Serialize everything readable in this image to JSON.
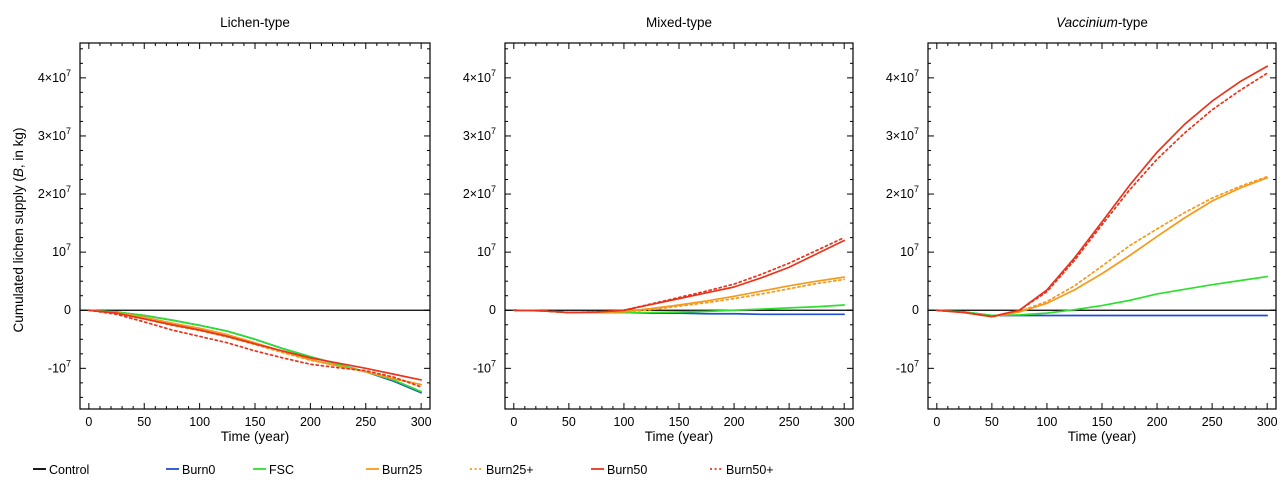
{
  "figure": {
    "ylabel_prefix": "Cumulated lichen supply (",
    "ylabel_italic": "B",
    "ylabel_suffix": ", in kg)"
  },
  "legend": [
    {
      "name": "Control",
      "color": "#000000",
      "dash": "solid"
    },
    {
      "name": "Burn0",
      "color": "#1f4fd6",
      "dash": "solid"
    },
    {
      "name": "FSC",
      "color": "#2ee02e",
      "dash": "solid"
    },
    {
      "name": "Burn25",
      "color": "#f59a1c",
      "dash": "solid"
    },
    {
      "name": "Burn25+",
      "color": "#f59a1c",
      "dash": "dotted"
    },
    {
      "name": "Burn50",
      "color": "#e8341c",
      "dash": "solid"
    },
    {
      "name": "Burn50+",
      "color": "#e8341c",
      "dash": "dotted"
    }
  ],
  "chart_data": [
    {
      "type": "line",
      "title": "Lichen-type",
      "title_italic": "",
      "title_rest": "",
      "xlabel": "Time (year)",
      "ylabel": "Cumulated lichen supply (B, in kg)",
      "xlim": [
        -8,
        308
      ],
      "ylim": [
        -17000000,
        46000000
      ],
      "xticks": [
        0,
        50,
        100,
        150,
        200,
        250,
        300
      ],
      "yticks": [
        {
          "value": -10000000,
          "base": "-10",
          "exp": "7"
        },
        {
          "value": 0,
          "base": "0",
          "exp": ""
        },
        {
          "value": 10000000,
          "base": "10",
          "exp": "7"
        },
        {
          "value": 20000000,
          "base": "2×10",
          "exp": "7"
        },
        {
          "value": 30000000,
          "base": "3×10",
          "exp": "7"
        },
        {
          "value": 40000000,
          "base": "4×10",
          "exp": "7"
        }
      ],
      "x": [
        0,
        25,
        50,
        75,
        100,
        125,
        150,
        175,
        200,
        225,
        250,
        275,
        300
      ],
      "series": [
        {
          "name": "Control",
          "values": [
            0,
            0,
            0,
            0,
            0,
            0,
            0,
            0,
            0,
            0,
            0,
            0,
            0
          ]
        },
        {
          "name": "Burn0",
          "values": [
            0,
            -300000,
            -900000,
            -1700000,
            -2600000,
            -3600000,
            -5000000,
            -6600000,
            -8000000,
            -9300000,
            -10600000,
            -12200000,
            -14200000
          ]
        },
        {
          "name": "FSC",
          "values": [
            0,
            -300000,
            -900000,
            -1700000,
            -2600000,
            -3600000,
            -5000000,
            -6600000,
            -8000000,
            -9300000,
            -10600000,
            -12000000,
            -14000000
          ]
        },
        {
          "name": "Burn25",
          "values": [
            0,
            -400000,
            -1200000,
            -2200000,
            -3100000,
            -4200000,
            -5600000,
            -7100000,
            -8500000,
            -9600000,
            -10600000,
            -11800000,
            -12800000
          ]
        },
        {
          "name": "Burn25+",
          "values": [
            0,
            -500000,
            -1500000,
            -2600000,
            -3500000,
            -4600000,
            -5900000,
            -7300000,
            -8600000,
            -9600000,
            -10500000,
            -11700000,
            -12800000
          ]
        },
        {
          "name": "Burn50",
          "values": [
            0,
            -500000,
            -1500000,
            -2500000,
            -3400000,
            -4500000,
            -5800000,
            -7000000,
            -8200000,
            -9100000,
            -10000000,
            -11000000,
            -12000000
          ]
        },
        {
          "name": "Burn50+",
          "values": [
            0,
            -700000,
            -2000000,
            -3400000,
            -4500000,
            -5600000,
            -7000000,
            -8200000,
            -9300000,
            -9900000,
            -10400000,
            -11500000,
            -13200000
          ]
        }
      ]
    },
    {
      "type": "line",
      "title": "Mixed-type",
      "title_italic": "",
      "title_rest": "",
      "xlabel": "Time (year)",
      "ylabel": "",
      "xlim": [
        -8,
        308
      ],
      "ylim": [
        -17000000,
        46000000
      ],
      "xticks": [
        0,
        50,
        100,
        150,
        200,
        250,
        300
      ],
      "yticks": [
        {
          "value": -10000000,
          "base": "-10",
          "exp": "7"
        },
        {
          "value": 0,
          "base": "0",
          "exp": ""
        },
        {
          "value": 10000000,
          "base": "10",
          "exp": "7"
        },
        {
          "value": 20000000,
          "base": "2×10",
          "exp": "7"
        },
        {
          "value": 30000000,
          "base": "3×10",
          "exp": "7"
        },
        {
          "value": 40000000,
          "base": "4×10",
          "exp": "7"
        }
      ],
      "x": [
        0,
        25,
        50,
        75,
        100,
        125,
        150,
        175,
        200,
        225,
        250,
        275,
        300
      ],
      "series": [
        {
          "name": "Control",
          "values": [
            0,
            0,
            0,
            0,
            0,
            0,
            0,
            0,
            0,
            0,
            0,
            0,
            0
          ]
        },
        {
          "name": "Burn0",
          "values": [
            0,
            -100000,
            -400000,
            -400000,
            -400000,
            -500000,
            -500000,
            -600000,
            -600000,
            -700000,
            -700000,
            -700000,
            -700000
          ]
        },
        {
          "name": "FSC",
          "values": [
            0,
            -100000,
            -400000,
            -400000,
            -400000,
            -400000,
            -300000,
            -200000,
            0,
            200000,
            400000,
            600000,
            900000
          ]
        },
        {
          "name": "Burn25",
          "values": [
            0,
            -100000,
            -400000,
            -400000,
            -200000,
            300000,
            900000,
            1600000,
            2400000,
            3300000,
            4200000,
            5000000,
            5700000
          ]
        },
        {
          "name": "Burn25+",
          "values": [
            0,
            -100000,
            -400000,
            -400000,
            -300000,
            100000,
            700000,
            1300000,
            2000000,
            2800000,
            3700000,
            4600000,
            5300000
          ]
        },
        {
          "name": "Burn50",
          "values": [
            0,
            -100000,
            -400000,
            -300000,
            0,
            1000000,
            2000000,
            3000000,
            4000000,
            5600000,
            7400000,
            9700000,
            12000000
          ]
        },
        {
          "name": "Burn50+",
          "values": [
            0,
            -100000,
            -400000,
            -300000,
            0,
            1100000,
            2200000,
            3300000,
            4500000,
            6200000,
            8100000,
            10300000,
            12500000
          ]
        }
      ]
    },
    {
      "type": "line",
      "title": "Vaccinium-type",
      "title_italic": "Vaccinium",
      "title_rest": "-type",
      "xlabel": "Time (year)",
      "ylabel": "",
      "xlim": [
        -8,
        308
      ],
      "ylim": [
        -17000000,
        46000000
      ],
      "xticks": [
        0,
        50,
        100,
        150,
        200,
        250,
        300
      ],
      "yticks": [
        {
          "value": -10000000,
          "base": "-10",
          "exp": "7"
        },
        {
          "value": 0,
          "base": "0",
          "exp": ""
        },
        {
          "value": 10000000,
          "base": "10",
          "exp": "7"
        },
        {
          "value": 20000000,
          "base": "2×10",
          "exp": "7"
        },
        {
          "value": 30000000,
          "base": "3×10",
          "exp": "7"
        },
        {
          "value": 40000000,
          "base": "4×10",
          "exp": "7"
        }
      ],
      "x": [
        0,
        25,
        50,
        75,
        100,
        125,
        150,
        175,
        200,
        225,
        250,
        275,
        300
      ],
      "series": [
        {
          "name": "Control",
          "values": [
            0,
            0,
            0,
            0,
            0,
            0,
            0,
            0,
            0,
            0,
            0,
            0,
            0
          ]
        },
        {
          "name": "Burn0",
          "values": [
            0,
            -300000,
            -900000,
            -900000,
            -900000,
            -900000,
            -900000,
            -900000,
            -900000,
            -900000,
            -900000,
            -900000,
            -900000
          ]
        },
        {
          "name": "FSC",
          "values": [
            0,
            -300000,
            -900000,
            -800000,
            -500000,
            100000,
            800000,
            1700000,
            2800000,
            3600000,
            4400000,
            5100000,
            5800000
          ]
        },
        {
          "name": "Burn25",
          "values": [
            0,
            -400000,
            -1100000,
            -300000,
            1200000,
            3500000,
            6300000,
            9400000,
            12700000,
            15900000,
            18800000,
            21000000,
            22800000
          ]
        },
        {
          "name": "Burn25+",
          "values": [
            0,
            -400000,
            -1100000,
            -200000,
            1500000,
            4200000,
            7600000,
            11100000,
            14000000,
            16800000,
            19300000,
            21300000,
            23000000
          ]
        },
        {
          "name": "Burn50",
          "values": [
            0,
            -400000,
            -1100000,
            0,
            3500000,
            9000000,
            15200000,
            21500000,
            27200000,
            32000000,
            36000000,
            39300000,
            42000000
          ]
        },
        {
          "name": "Burn50+",
          "values": [
            0,
            -400000,
            -1100000,
            0,
            3200000,
            8600000,
            14700000,
            20700000,
            26000000,
            30500000,
            34500000,
            37800000,
            40800000
          ]
        }
      ]
    }
  ]
}
